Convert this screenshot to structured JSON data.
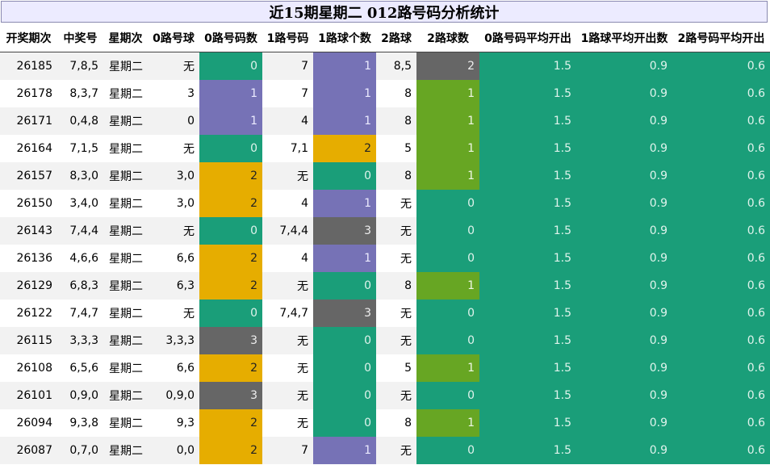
{
  "title": "近15期星期二 012路号码分析统计",
  "headers": [
    "开奖期次",
    "中奖号",
    "星期次",
    "0路号球",
    "0路号码数",
    "1路号码",
    "1路球个数",
    "2路球",
    "2路球数",
    "0路号码平均开出",
    "1路球平均开出数",
    "2路号码平均开出"
  ],
  "colors": {
    "green": "#1a9e79",
    "purple": "#7672b6",
    "orange": "#e6ad00",
    "gray": "#666666",
    "lime": "#67a623",
    "title_bg": "#ecebff"
  },
  "rows": [
    {
      "period": "26185",
      "numbers": "7,8,5",
      "weekday": "星期二",
      "r0": "无",
      "c0": "0",
      "r1": "7",
      "c1": "1",
      "r2": "8,5",
      "c2": "2",
      "a0": "1.5",
      "a1": "0.9",
      "a2": "0.6"
    },
    {
      "period": "26178",
      "numbers": "8,3,7",
      "weekday": "星期二",
      "r0": "3",
      "c0": "1",
      "r1": "7",
      "c1": "1",
      "r2": "8",
      "c2": "1",
      "a0": "1.5",
      "a1": "0.9",
      "a2": "0.6"
    },
    {
      "period": "26171",
      "numbers": "0,4,8",
      "weekday": "星期二",
      "r0": "0",
      "c0": "1",
      "r1": "4",
      "c1": "1",
      "r2": "8",
      "c2": "1",
      "a0": "1.5",
      "a1": "0.9",
      "a2": "0.6"
    },
    {
      "period": "26164",
      "numbers": "7,1,5",
      "weekday": "星期二",
      "r0": "无",
      "c0": "0",
      "r1": "7,1",
      "c1": "2",
      "r2": "5",
      "c2": "1",
      "a0": "1.5",
      "a1": "0.9",
      "a2": "0.6"
    },
    {
      "period": "26157",
      "numbers": "8,3,0",
      "weekday": "星期二",
      "r0": "3,0",
      "c0": "2",
      "r1": "无",
      "c1": "0",
      "r2": "8",
      "c2": "1",
      "a0": "1.5",
      "a1": "0.9",
      "a2": "0.6"
    },
    {
      "period": "26150",
      "numbers": "3,4,0",
      "weekday": "星期二",
      "r0": "3,0",
      "c0": "2",
      "r1": "4",
      "c1": "1",
      "r2": "无",
      "c2": "0",
      "a0": "1.5",
      "a1": "0.9",
      "a2": "0.6"
    },
    {
      "period": "26143",
      "numbers": "7,4,4",
      "weekday": "星期二",
      "r0": "无",
      "c0": "0",
      "r1": "7,4,4",
      "c1": "3",
      "r2": "无",
      "c2": "0",
      "a0": "1.5",
      "a1": "0.9",
      "a2": "0.6"
    },
    {
      "period": "26136",
      "numbers": "4,6,6",
      "weekday": "星期二",
      "r0": "6,6",
      "c0": "2",
      "r1": "4",
      "c1": "1",
      "r2": "无",
      "c2": "0",
      "a0": "1.5",
      "a1": "0.9",
      "a2": "0.6"
    },
    {
      "period": "26129",
      "numbers": "6,8,3",
      "weekday": "星期二",
      "r0": "6,3",
      "c0": "2",
      "r1": "无",
      "c1": "0",
      "r2": "8",
      "c2": "1",
      "a0": "1.5",
      "a1": "0.9",
      "a2": "0.6"
    },
    {
      "period": "26122",
      "numbers": "7,4,7",
      "weekday": "星期二",
      "r0": "无",
      "c0": "0",
      "r1": "7,4,7",
      "c1": "3",
      "r2": "无",
      "c2": "0",
      "a0": "1.5",
      "a1": "0.9",
      "a2": "0.6"
    },
    {
      "period": "26115",
      "numbers": "3,3,3",
      "weekday": "星期二",
      "r0": "3,3,3",
      "c0": "3",
      "r1": "无",
      "c1": "0",
      "r2": "无",
      "c2": "0",
      "a0": "1.5",
      "a1": "0.9",
      "a2": "0.6"
    },
    {
      "period": "26108",
      "numbers": "6,5,6",
      "weekday": "星期二",
      "r0": "6,6",
      "c0": "2",
      "r1": "无",
      "c1": "0",
      "r2": "5",
      "c2": "1",
      "a0": "1.5",
      "a1": "0.9",
      "a2": "0.6"
    },
    {
      "period": "26101",
      "numbers": "0,9,0",
      "weekday": "星期二",
      "r0": "0,9,0",
      "c0": "3",
      "r1": "无",
      "c1": "0",
      "r2": "无",
      "c2": "0",
      "a0": "1.5",
      "a1": "0.9",
      "a2": "0.6"
    },
    {
      "period": "26094",
      "numbers": "9,3,8",
      "weekday": "星期二",
      "r0": "9,3",
      "c0": "2",
      "r1": "无",
      "c1": "0",
      "r2": "8",
      "c2": "1",
      "a0": "1.5",
      "a1": "0.9",
      "a2": "0.6"
    },
    {
      "period": "26087",
      "numbers": "0,7,0",
      "weekday": "星期二",
      "r0": "0,0",
      "c0": "2",
      "r1": "7",
      "c1": "1",
      "r2": "无",
      "c2": "0",
      "a0": "1.5",
      "a1": "0.9",
      "a2": "0.6"
    }
  ]
}
